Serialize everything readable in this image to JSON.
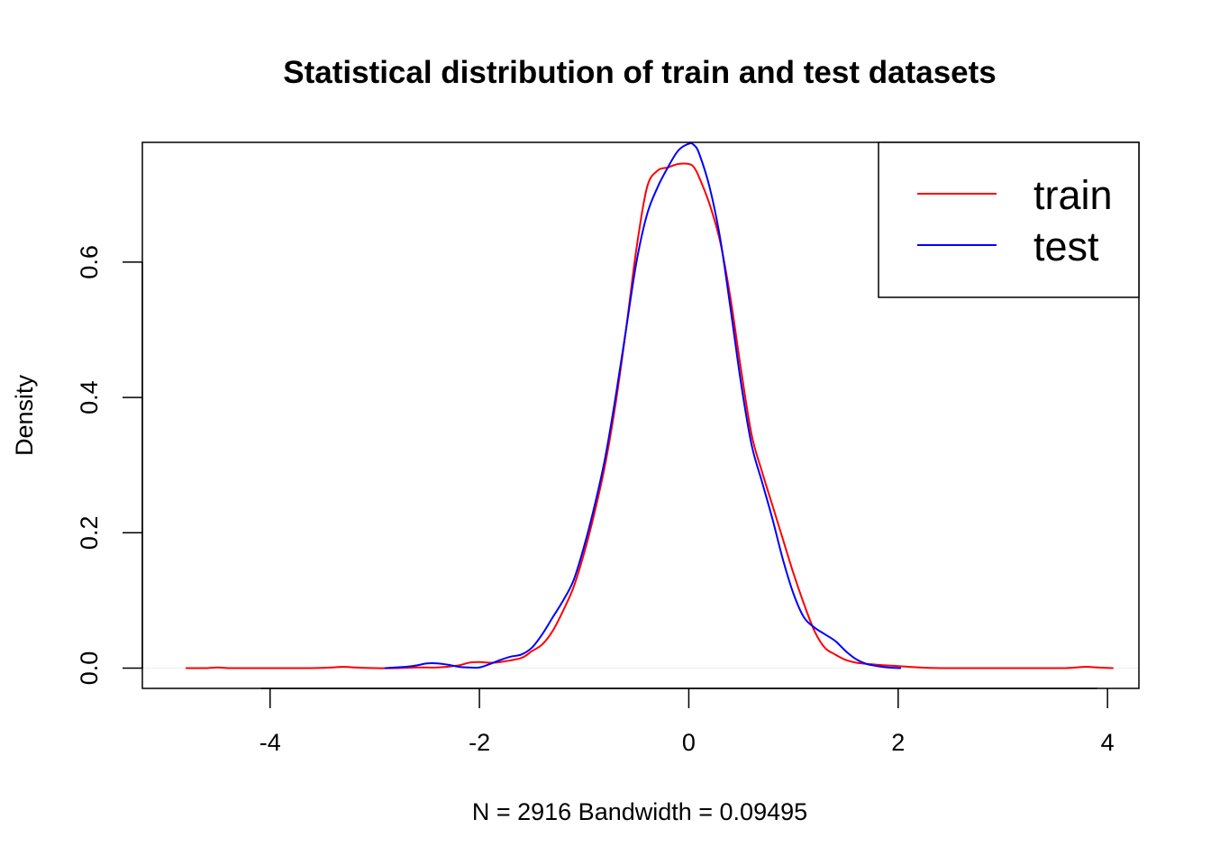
{
  "chart_data": {
    "type": "line",
    "title": "Statistical distribution of train and test datasets",
    "xlabel": "N = 2916   Bandwidth = 0.09495",
    "ylabel": "Density",
    "xlim": [
      -5.22,
      4.3
    ],
    "ylim": [
      -0.03,
      0.777
    ],
    "x_ticks": [
      -4,
      -2,
      0,
      2,
      4
    ],
    "x_tick_labels": [
      "-4",
      "-2",
      "0",
      "2",
      "4"
    ],
    "y_ticks": [
      0.0,
      0.2,
      0.4,
      0.6
    ],
    "y_tick_labels": [
      "0.0",
      "0.2",
      "0.4",
      "0.6"
    ],
    "grid": false,
    "zero_line": true,
    "legend": {
      "position": "top-right",
      "entries": [
        {
          "label": "train",
          "color": "#ff0000"
        },
        {
          "label": "test",
          "color": "#0000ff"
        }
      ]
    },
    "series": [
      {
        "name": "train",
        "color": "#ff0000",
        "x": [
          -4.8,
          -4.6,
          -4.5,
          -4.4,
          -4.2,
          -3.8,
          -3.6,
          -3.4,
          -3.3,
          -3.2,
          -3.0,
          -2.8,
          -2.6,
          -2.4,
          -2.2,
          -2.1,
          -2.0,
          -1.9,
          -1.8,
          -1.6,
          -1.5,
          -1.4,
          -1.3,
          -1.2,
          -1.1,
          -1.0,
          -0.9,
          -0.8,
          -0.7,
          -0.6,
          -0.5,
          -0.4,
          -0.3,
          -0.2,
          -0.1,
          0.0,
          0.05,
          0.1,
          0.2,
          0.3,
          0.4,
          0.5,
          0.6,
          0.7,
          0.8,
          0.9,
          1.0,
          1.1,
          1.2,
          1.3,
          1.4,
          1.5,
          1.6,
          1.8,
          2.0,
          2.2,
          2.4,
          2.6,
          3.0,
          3.4,
          3.6,
          3.7,
          3.8,
          3.9,
          4.05
        ],
        "y": [
          0.0,
          0.0,
          0.001,
          0.0,
          0.0,
          0.0,
          0.0,
          0.001,
          0.002,
          0.001,
          0.0,
          0.0,
          0.001,
          0.001,
          0.004,
          0.008,
          0.009,
          0.008,
          0.009,
          0.015,
          0.025,
          0.035,
          0.055,
          0.085,
          0.12,
          0.17,
          0.23,
          0.3,
          0.39,
          0.5,
          0.62,
          0.71,
          0.735,
          0.74,
          0.745,
          0.745,
          0.74,
          0.725,
          0.685,
          0.63,
          0.545,
          0.44,
          0.345,
          0.29,
          0.24,
          0.19,
          0.14,
          0.095,
          0.055,
          0.03,
          0.02,
          0.012,
          0.008,
          0.005,
          0.003,
          0.001,
          0.0,
          0.0,
          0.0,
          0.0,
          0.0,
          0.001,
          0.002,
          0.001,
          0.0
        ]
      },
      {
        "name": "test",
        "color": "#0000ff",
        "x": [
          -2.9,
          -2.8,
          -2.7,
          -2.6,
          -2.5,
          -2.4,
          -2.3,
          -2.2,
          -2.1,
          -2.0,
          -1.9,
          -1.8,
          -1.7,
          -1.6,
          -1.5,
          -1.4,
          -1.3,
          -1.2,
          -1.1,
          -1.0,
          -0.9,
          -0.8,
          -0.7,
          -0.6,
          -0.5,
          -0.4,
          -0.3,
          -0.2,
          -0.1,
          0.0,
          0.05,
          0.1,
          0.2,
          0.3,
          0.4,
          0.5,
          0.6,
          0.7,
          0.8,
          0.9,
          1.0,
          1.1,
          1.2,
          1.3,
          1.4,
          1.5,
          1.6,
          1.7,
          1.8,
          1.9,
          2.02
        ],
        "y": [
          0.0,
          0.001,
          0.002,
          0.004,
          0.007,
          0.007,
          0.005,
          0.002,
          0.001,
          0.001,
          0.006,
          0.012,
          0.017,
          0.02,
          0.03,
          0.05,
          0.075,
          0.1,
          0.13,
          0.18,
          0.24,
          0.31,
          0.4,
          0.5,
          0.6,
          0.67,
          0.71,
          0.74,
          0.765,
          0.775,
          0.773,
          0.76,
          0.71,
          0.635,
          0.53,
          0.42,
          0.33,
          0.275,
          0.22,
          0.16,
          0.11,
          0.075,
          0.06,
          0.05,
          0.04,
          0.025,
          0.013,
          0.006,
          0.003,
          0.001,
          0.0
        ]
      }
    ]
  }
}
